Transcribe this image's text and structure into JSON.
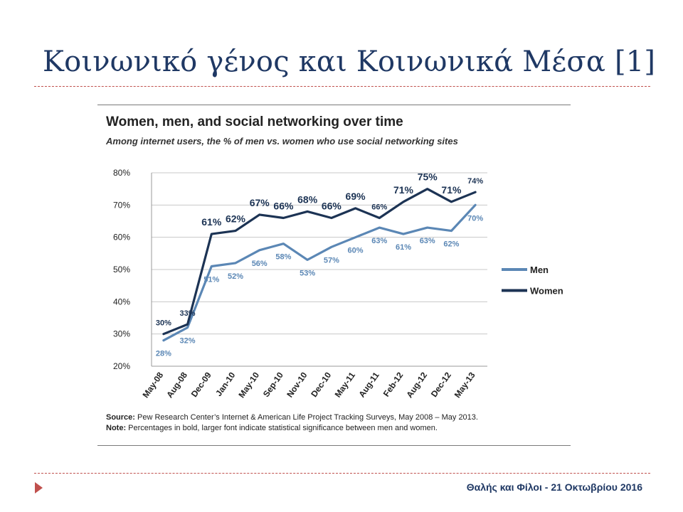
{
  "slide": {
    "title": "Κοινωνικό γένος και Κοινωνικά Μέσα [1]",
    "footer": "Θαλής και Φίλοι - 21 Οκτωβρίου 2016"
  },
  "chart_data": {
    "type": "line",
    "title": "Women, men, and social networking over time",
    "subtitle": "Among internet users, the % of men vs. women who use social networking sites",
    "categories": [
      "May-08",
      "Aug-08",
      "Dec-09",
      "Jan-10",
      "May-10",
      "Sep-10",
      "Nov-10",
      "Dec-10",
      "May-11",
      "Aug-11",
      "Feb-12",
      "Aug-12",
      "Dec-12",
      "May-13"
    ],
    "y_ticks": [
      "80%",
      "70%",
      "60%",
      "50%",
      "40%",
      "30%",
      "20%"
    ],
    "ylim": [
      20,
      80
    ],
    "grid": true,
    "legend_position": "right",
    "series": [
      {
        "name": "Men",
        "color": "#5b87b5",
        "values": [
          28,
          32,
          51,
          52,
          56,
          58,
          53,
          57,
          60,
          63,
          61,
          63,
          62,
          70
        ],
        "labels": [
          "28%",
          "32%",
          "51%",
          "52%",
          "56%",
          "58%",
          "53%",
          "57%",
          "60%",
          "63%",
          "61%",
          "63%",
          "62%",
          "70%"
        ]
      },
      {
        "name": "Women",
        "color": "#1c3354",
        "values": [
          30,
          33,
          61,
          62,
          67,
          66,
          68,
          66,
          69,
          66,
          71,
          75,
          71,
          74
        ],
        "labels": [
          "30%",
          "33%",
          "61%",
          "62%",
          "67%",
          "66%",
          "68%",
          "66%",
          "69%",
          "66%",
          "71%",
          "75%",
          "71%",
          "74%"
        ],
        "bold": [
          false,
          false,
          true,
          true,
          true,
          true,
          true,
          true,
          true,
          false,
          true,
          true,
          true,
          false
        ]
      }
    ],
    "source_label": "Source:",
    "source_text": "Pew Research Center’s Internet & American Life Project Tracking Surveys, May 2008 – May 2013.",
    "note_label": "Note:",
    "note_text": "Percentages in bold, larger font indicate statistical significance between men and women."
  }
}
